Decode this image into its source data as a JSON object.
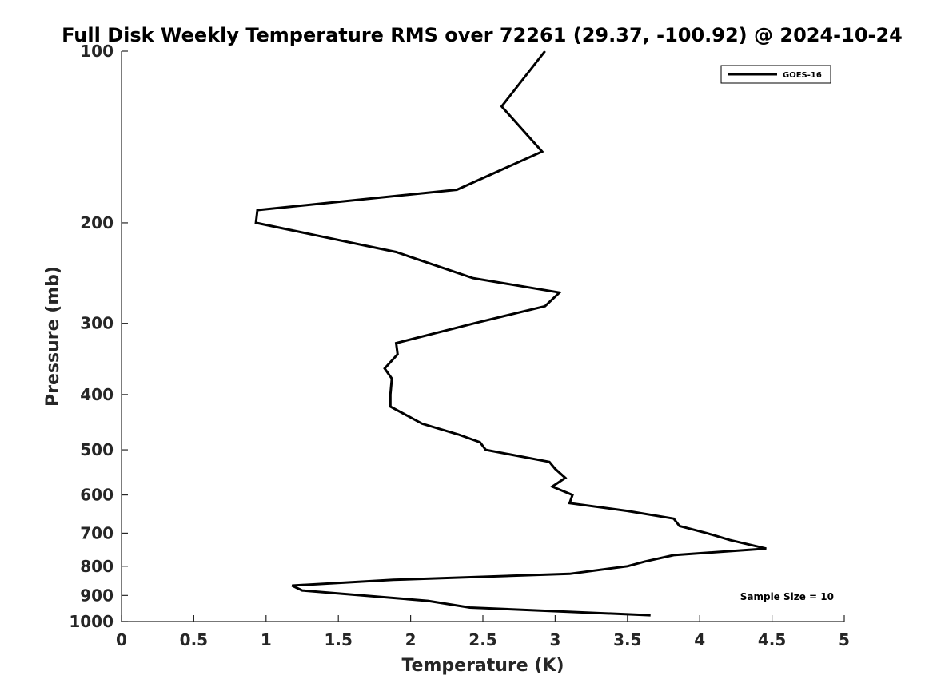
{
  "chart_data": {
    "type": "line",
    "title": "Full Disk Weekly Temperature RMS over 72261 (29.37, -100.92) @ 2024-10-24",
    "xlabel": "Temperature (K)",
    "ylabel": "Pressure (mb)",
    "xlim": [
      0,
      5
    ],
    "ylim": [
      1000,
      100
    ],
    "y_scale": "log",
    "y_reversed": true,
    "grid": false,
    "legend_position": "top-right",
    "x_ticks": [
      "0",
      "0.5",
      "1",
      "1.5",
      "2",
      "2.5",
      "3",
      "3.5",
      "4",
      "4.5",
      "5"
    ],
    "y_ticks": [
      "100",
      "200",
      "300",
      "400",
      "500",
      "600",
      "700",
      "800",
      "900",
      "1000"
    ],
    "series": [
      {
        "name": "GOES-16",
        "color": "#000000",
        "points": [
          [
            2.93,
            100
          ],
          [
            2.63,
            125
          ],
          [
            2.91,
            150
          ],
          [
            2.32,
            175
          ],
          [
            0.94,
            190
          ],
          [
            0.93,
            200
          ],
          [
            1.9,
            225
          ],
          [
            2.43,
            250
          ],
          [
            3.03,
            265
          ],
          [
            2.93,
            280
          ],
          [
            2.44,
            300
          ],
          [
            1.9,
            325
          ],
          [
            1.91,
            340
          ],
          [
            1.82,
            360
          ],
          [
            1.87,
            375
          ],
          [
            1.86,
            400
          ],
          [
            1.86,
            420
          ],
          [
            2.08,
            450
          ],
          [
            2.33,
            470
          ],
          [
            2.48,
            485
          ],
          [
            2.52,
            500
          ],
          [
            2.96,
            525
          ],
          [
            3.0,
            540
          ],
          [
            3.07,
            560
          ],
          [
            2.98,
            580
          ],
          [
            3.12,
            600
          ],
          [
            3.1,
            620
          ],
          [
            3.5,
            640
          ],
          [
            3.82,
            660
          ],
          [
            3.86,
            680
          ],
          [
            4.05,
            700
          ],
          [
            4.21,
            720
          ],
          [
            4.46,
            745
          ],
          [
            3.82,
            765
          ],
          [
            3.62,
            785
          ],
          [
            3.5,
            800
          ],
          [
            3.1,
            825
          ],
          [
            1.88,
            845
          ],
          [
            1.18,
            865
          ],
          [
            1.25,
            882
          ],
          [
            2.12,
            920
          ],
          [
            2.41,
            945
          ],
          [
            3.66,
            975
          ]
        ]
      }
    ],
    "annotations": [
      "Sample Size = 10"
    ]
  }
}
